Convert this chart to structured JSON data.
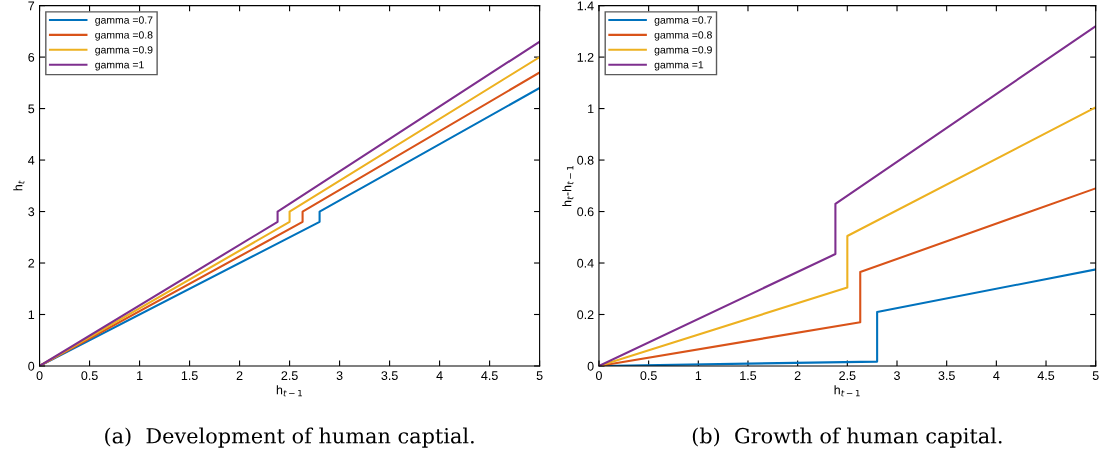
{
  "chart_data": [
    {
      "type": "line",
      "xlabel": "h$_{t−1}$",
      "ylabel": "h$_{t}$",
      "xlim": [
        0,
        5
      ],
      "ylim": [
        0,
        7
      ],
      "xticks": [
        0,
        0.5,
        1,
        1.5,
        2,
        2.5,
        3,
        3.5,
        4,
        4.5,
        5
      ],
      "yticks": [
        0,
        1,
        2,
        3,
        4,
        5,
        6,
        7
      ],
      "grid": false,
      "legend": "top left",
      "marker": "none",
      "line_style": "solid",
      "annotations": [
        "(a)  Development of human captial."
      ],
      "series": [
        {
          "name": "gamma =0.7",
          "color": "#0072bd",
          "x": [
            0,
            2.8,
            2.8,
            5
          ],
          "values": [
            0,
            2.8,
            3.0,
            5.4
          ]
        },
        {
          "name": "gamma =0.8",
          "color": "#d95319",
          "x": [
            0,
            2.63,
            2.63,
            5
          ],
          "values": [
            0,
            2.8,
            3.0,
            5.7
          ]
        },
        {
          "name": "gamma =0.9",
          "color": "#edb120",
          "x": [
            0,
            2.5,
            2.5,
            5
          ],
          "values": [
            0,
            2.8,
            3.0,
            6.0
          ]
        },
        {
          "name": "gamma =1",
          "color": "#7e2f8e",
          "x": [
            0,
            2.38,
            2.38,
            5
          ],
          "values": [
            0,
            2.8,
            3.0,
            6.3
          ]
        }
      ]
    },
    {
      "type": "line",
      "xlabel": "h$_{t−1}$",
      "ylabel": "h$_{t}$-h$_{t−1}$",
      "xlim": [
        0,
        5
      ],
      "ylim": [
        0,
        1.4
      ],
      "xticks": [
        0,
        0.5,
        1,
        1.5,
        2,
        2.5,
        3,
        3.5,
        4,
        4.5,
        5
      ],
      "yticks": [
        0,
        0.2,
        0.4,
        0.6,
        0.8,
        1,
        1.2,
        1.4
      ],
      "grid": false,
      "legend": "top left",
      "marker": "none",
      "line_style": "solid",
      "annotations": [
        "(b)  Growth of human capital."
      ],
      "series": [
        {
          "name": "gamma =0.7",
          "color": "#0072bd",
          "x": [
            0,
            2.8,
            2.8,
            5
          ],
          "values": [
            0,
            0.017,
            0.21,
            0.375
          ]
        },
        {
          "name": "gamma =0.8",
          "color": "#d95319",
          "x": [
            0,
            2.63,
            2.63,
            5
          ],
          "values": [
            0,
            0.17,
            0.365,
            0.69
          ]
        },
        {
          "name": "gamma =0.9",
          "color": "#edb120",
          "x": [
            0,
            2.5,
            2.5,
            5
          ],
          "values": [
            0,
            0.305,
            0.505,
            1.005
          ]
        },
        {
          "name": "gamma =1",
          "color": "#7e2f8e",
          "x": [
            0,
            2.38,
            2.38,
            5
          ],
          "values": [
            0,
            0.435,
            0.63,
            1.32
          ]
        }
      ]
    }
  ]
}
